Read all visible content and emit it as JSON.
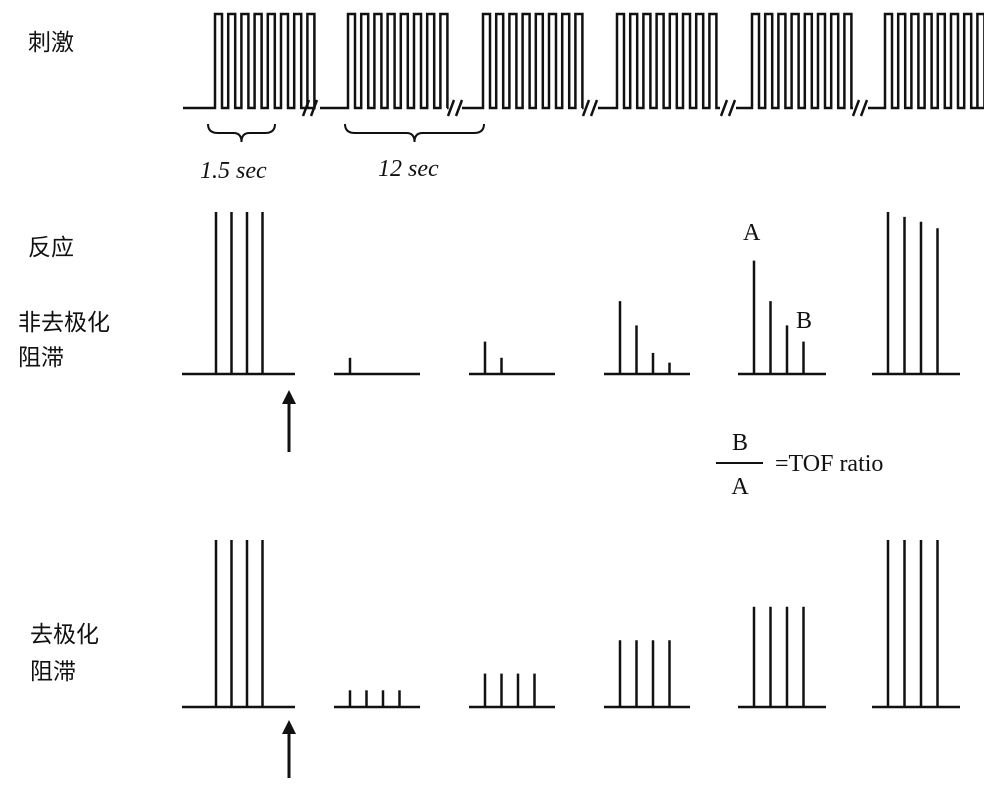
{
  "labels": {
    "stimulus": "刺激",
    "response": "反应",
    "nondepolarizing_line1": "非去极化",
    "nondepolarizing_line2": "阻滞",
    "depolarizing_line1": "去极化",
    "depolarizing_line2": "阻滞"
  },
  "durations": {
    "train": "1.5 sec",
    "interval": "12 sec"
  },
  "tof": {
    "peak_a": "A",
    "peak_b": "B",
    "numerator": "B",
    "denominator": "A",
    "ratio_text": "=TOF ratio"
  },
  "response_heights": {
    "nondepolarizing": [
      [
        1.0,
        1.0,
        1.0,
        1.0
      ],
      [
        0.1,
        0,
        0,
        0
      ],
      [
        0.2,
        0.1,
        0,
        0
      ],
      [
        0.45,
        0.3,
        0.13,
        0.07
      ],
      [
        0.7,
        0.45,
        0.3,
        0.2
      ],
      [
        1.0,
        0.97,
        0.94,
        0.9
      ]
    ],
    "depolarizing": [
      [
        1.0,
        1.0,
        1.0,
        1.0
      ],
      [
        0.1,
        0.1,
        0.1,
        0.1
      ],
      [
        0.2,
        0.2,
        0.2,
        0.2
      ],
      [
        0.4,
        0.4,
        0.4,
        0.4
      ],
      [
        0.6,
        0.6,
        0.6,
        0.6
      ],
      [
        1.0,
        1.0,
        1.0,
        1.0
      ]
    ]
  },
  "colors": {
    "ink": "#111111",
    "background": "#ffffff"
  }
}
